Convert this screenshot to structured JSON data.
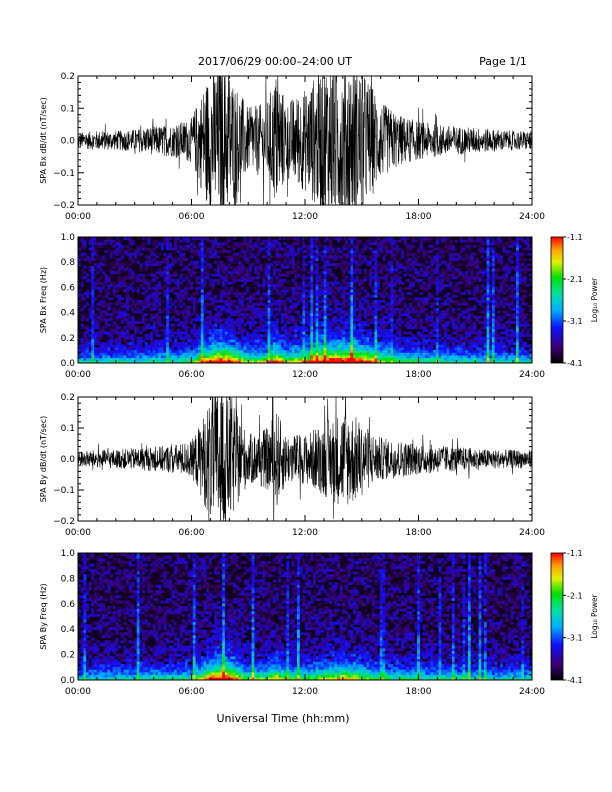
{
  "header": {
    "title": "2017/06/29   00:00–24:00 UT",
    "page": "Page 1/1"
  },
  "footer": {
    "xlabel": "Universal Time (hh:mm)"
  },
  "colors": {
    "trace": "#000000",
    "frame": "#000000",
    "background": "#ffffff"
  },
  "chart_data": [
    {
      "type": "line",
      "panel": "Bx time series",
      "ylabel": "SPA Bx dB/dt (nT/sec)",
      "xlim": [
        0,
        24
      ],
      "ylim": [
        -0.2,
        0.2
      ],
      "xticks": [
        "00:00",
        "06:00",
        "12:00",
        "18:00",
        "24:00"
      ],
      "yticks": [
        "0.2",
        "0.1",
        "0.0",
        "−0.1",
        "−0.2"
      ],
      "envelope": {
        "x_hours": [
          0,
          1,
          2,
          3,
          4,
          5,
          6,
          6.5,
          7,
          7.5,
          8,
          8.5,
          9,
          10,
          10.5,
          11,
          12,
          12.5,
          13,
          13.5,
          14,
          14.5,
          15,
          15.5,
          16,
          17,
          18,
          19,
          20,
          21,
          22,
          23,
          24
        ],
        "amplitude": [
          0.025,
          0.03,
          0.03,
          0.035,
          0.045,
          0.05,
          0.07,
          0.15,
          0.22,
          0.25,
          0.22,
          0.16,
          0.1,
          0.12,
          0.22,
          0.12,
          0.16,
          0.2,
          0.25,
          0.25,
          0.25,
          0.25,
          0.22,
          0.18,
          0.12,
          0.08,
          0.06,
          0.05,
          0.045,
          0.04,
          0.035,
          0.03,
          0.03
        ]
      }
    },
    {
      "type": "heatmap",
      "panel": "Bx spectrogram",
      "ylabel": "SPA Bx Freq (Hz)",
      "xlim": [
        0,
        24
      ],
      "ylim": [
        0,
        1.0
      ],
      "xticks": [
        "00:00",
        "06:00",
        "12:00",
        "18:00",
        "24:00"
      ],
      "yticks": [
        "1.0",
        "0.8",
        "0.6",
        "0.4",
        "0.2",
        "0.0"
      ],
      "colorbar": {
        "label": "Log₁₀ Power",
        "ticks": [
          "-1.1",
          "-2.1",
          "-3.1",
          "-4.1"
        ],
        "range": [
          -4.1,
          -1.1
        ]
      },
      "scale": "log10 power"
    },
    {
      "type": "line",
      "panel": "By time series",
      "ylabel": "SPA By dB/dt (nT/sec)",
      "xlim": [
        0,
        24
      ],
      "ylim": [
        -0.2,
        0.2
      ],
      "xticks": [
        "00:00",
        "06:00",
        "12:00",
        "18:00",
        "24:00"
      ],
      "yticks": [
        "0.2",
        "0.1",
        "0.0",
        "−0.1",
        "−0.2"
      ],
      "envelope": {
        "x_hours": [
          0,
          1,
          2,
          3,
          4,
          5,
          6,
          6.5,
          7,
          7.5,
          8,
          8.5,
          9,
          10,
          10.5,
          11,
          12,
          12.5,
          13,
          13.5,
          14,
          14.5,
          15,
          15.5,
          16,
          17,
          18,
          19,
          20,
          21,
          22,
          23,
          24
        ],
        "amplitude": [
          0.025,
          0.03,
          0.03,
          0.035,
          0.04,
          0.045,
          0.06,
          0.12,
          0.2,
          0.25,
          0.22,
          0.14,
          0.08,
          0.1,
          0.16,
          0.08,
          0.08,
          0.1,
          0.12,
          0.14,
          0.16,
          0.15,
          0.12,
          0.09,
          0.07,
          0.06,
          0.05,
          0.045,
          0.04,
          0.035,
          0.03,
          0.03,
          0.03
        ]
      }
    },
    {
      "type": "heatmap",
      "panel": "By spectrogram",
      "ylabel": "SPA By Freq (Hz)",
      "xlim": [
        0,
        24
      ],
      "ylim": [
        0,
        1.0
      ],
      "xticks": [
        "00:00",
        "06:00",
        "12:00",
        "18:00",
        "24:00"
      ],
      "yticks": [
        "1.0",
        "0.8",
        "0.6",
        "0.4",
        "0.2",
        "0.0"
      ],
      "colorbar": {
        "label": "Log₁₀ Power",
        "ticks": [
          "-1.1",
          "-2.1",
          "-3.1",
          "-4.1"
        ],
        "range": [
          -4.1,
          -1.1
        ]
      },
      "scale": "log10 power"
    }
  ]
}
